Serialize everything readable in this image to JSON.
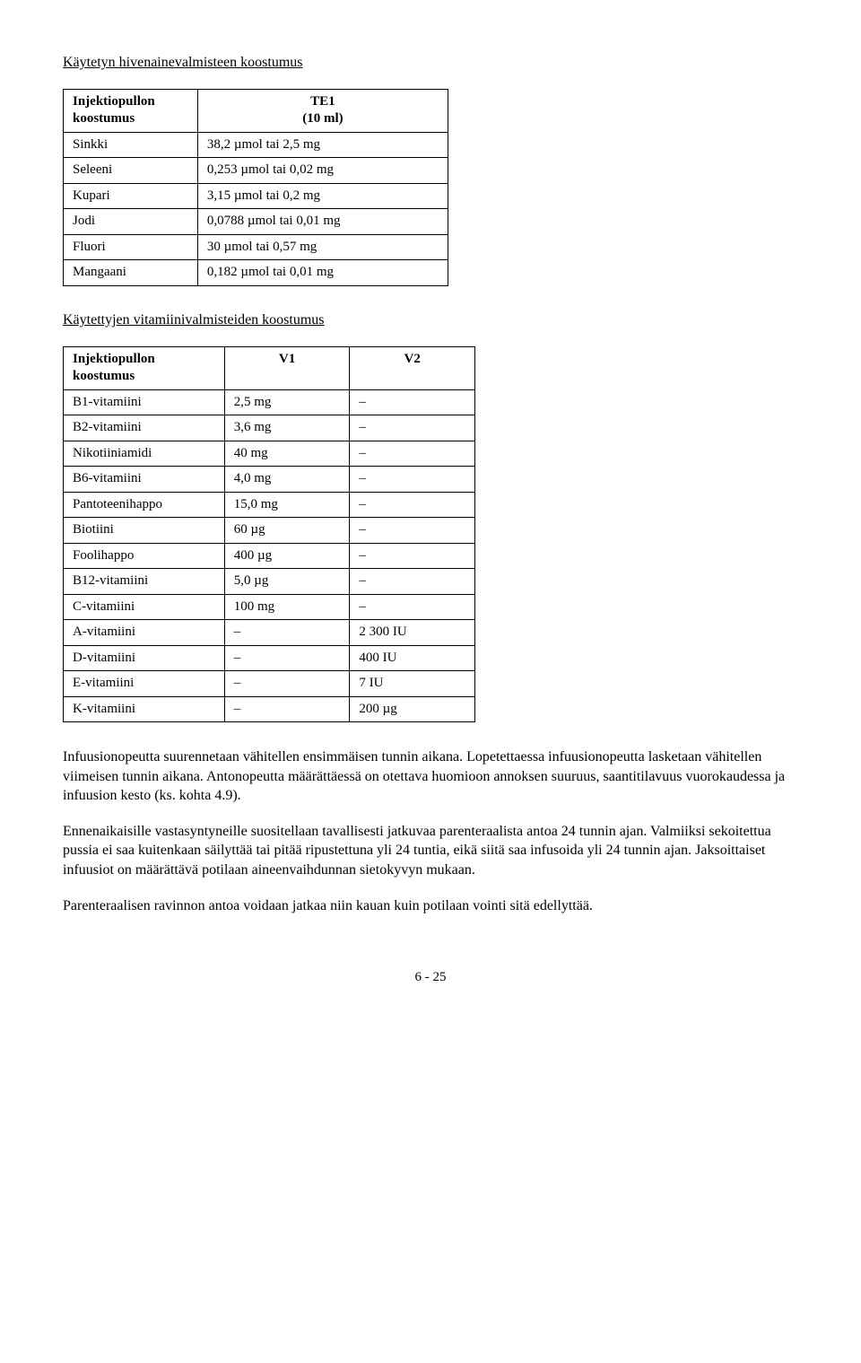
{
  "section1": {
    "title": "Käytetyn hivenainevalmisteen koostumus",
    "col1_header_l1": "Injektiopullon",
    "col1_header_l2": "koostumus",
    "col2_header_l1": "TE1",
    "col2_header_l2": "(10 ml)",
    "rows": [
      {
        "name": "Sinkki",
        "val": "38,2 µmol tai 2,5 mg"
      },
      {
        "name": "Seleeni",
        "val": "0,253 µmol tai 0,02 mg"
      },
      {
        "name": "Kupari",
        "val": "3,15 µmol tai 0,2 mg"
      },
      {
        "name": "Jodi",
        "val": "0,0788 µmol tai 0,01 mg"
      },
      {
        "name": "Fluori",
        "val": "30 µmol tai 0,57 mg"
      },
      {
        "name": "Mangaani",
        "val": "0,182 µmol tai 0,01 mg"
      }
    ]
  },
  "section2": {
    "title": "Käytettyjen vitamiinivalmisteiden koostumus",
    "col1_header_l1": "Injektiopullon",
    "col1_header_l2": "koostumus",
    "col2_header": "V1",
    "col3_header": "V2",
    "rows": [
      {
        "name": "B1-vitamiini",
        "v1": "2,5 mg",
        "v2": "–"
      },
      {
        "name": "B2-vitamiini",
        "v1": "3,6 mg",
        "v2": "–"
      },
      {
        "name": "Nikotiiniamidi",
        "v1": "40 mg",
        "v2": "–"
      },
      {
        "name": "B6-vitamiini",
        "v1": "4,0 mg",
        "v2": "–"
      },
      {
        "name": "Pantoteenihappo",
        "v1": "15,0 mg",
        "v2": "–"
      },
      {
        "name": "Biotiini",
        "v1": "60 µg",
        "v2": "–"
      },
      {
        "name": "Foolihappo",
        "v1": "400 µg",
        "v2": "–"
      },
      {
        "name": "B12-vitamiini",
        "v1": "5,0 µg",
        "v2": "–"
      },
      {
        "name": "C-vitamiini",
        "v1": "100 mg",
        "v2": "–"
      },
      {
        "name": "A-vitamiini",
        "v1": "–",
        "v2": "2 300 IU"
      },
      {
        "name": "D-vitamiini",
        "v1": "–",
        "v2": "400 IU"
      },
      {
        "name": "E-vitamiini",
        "v1": "–",
        "v2": "7 IU"
      },
      {
        "name": "K-vitamiini",
        "v1": "–",
        "v2": "200 µg"
      }
    ]
  },
  "paragraphs": {
    "p1": "Infuusionopeutta suurennetaan vähitellen ensimmäisen tunnin aikana. Lopetettaessa infuusionopeutta lasketaan vähitellen viimeisen tunnin aikana. Antonopeutta määrättäessä on otettava huomioon annoksen suuruus, saantitilavuus vuorokaudessa ja infuusion kesto (ks. kohta 4.9).",
    "p2": "Ennenaikaisille vastasyntyneille suositellaan tavallisesti jatkuvaa parenteraalista antoa 24 tunnin ajan. Valmiiksi sekoitettua pussia ei saa kuitenkaan säilyttää tai pitää ripustettuna yli 24 tuntia, eikä siitä saa infusoida  yli 24 tunnin ajan. Jaksoittaiset infuusiot on määrättävä potilaan aineenvaihdunnan sietokyvyn mukaan.",
    "p3": "Parenteraalisen ravinnon antoa voidaan jatkaa niin kauan kuin potilaan vointi sitä edellyttää."
  },
  "page_number": "6 - 25"
}
